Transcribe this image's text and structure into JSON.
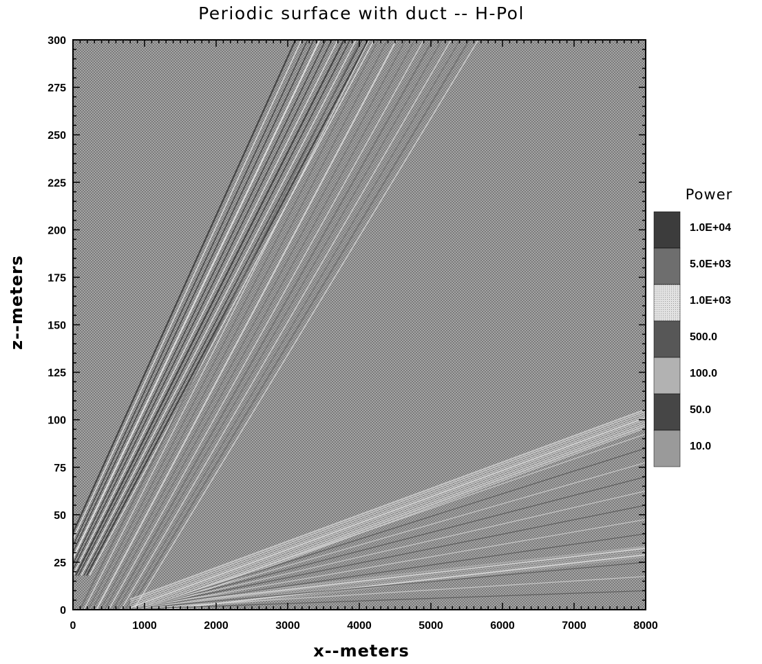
{
  "chart_data": {
    "type": "heatmap",
    "title": "Periodic surface with duct -- H-Pol",
    "xlabel": "x--meters",
    "ylabel": "z--meters",
    "xlim": [
      0,
      8000
    ],
    "ylim": [
      0,
      300
    ],
    "x_ticks": [
      "0",
      "1000",
      "2000",
      "3000",
      "4000",
      "5000",
      "6000",
      "7000",
      "8000"
    ],
    "x_tick_values": [
      0,
      1000,
      2000,
      3000,
      4000,
      5000,
      6000,
      7000,
      8000
    ],
    "y_ticks": [
      "0",
      "25",
      "50",
      "75",
      "100",
      "125",
      "150",
      "175",
      "200",
      "225",
      "250",
      "275",
      "300"
    ],
    "y_tick_values": [
      0,
      25,
      50,
      75,
      100,
      125,
      150,
      175,
      200,
      225,
      250,
      275,
      300
    ],
    "colorbar": {
      "title": "Power",
      "levels": [
        {
          "label": "1.0E+04",
          "value": 10000,
          "color": "#3c3c3c"
        },
        {
          "label": "5.0E+03",
          "value": 5000,
          "color": "#6e6e6e"
        },
        {
          "label": "1.0E+03",
          "value": 1000,
          "color": "#d8d8d8"
        },
        {
          "label": "500.0",
          "value": 500,
          "color": "#575757"
        },
        {
          "label": "100.0",
          "value": 100,
          "color": "#b2b2b2"
        },
        {
          "label": "50.0",
          "value": 50,
          "color": "#464646"
        },
        {
          "label": "10.0",
          "value": 10,
          "color": "#9a9a9a"
        }
      ]
    },
    "features": [
      {
        "name": "direct-ray-band",
        "from": [
          0,
          18
        ],
        "to": [
          3700,
          300
        ],
        "level": 10000
      },
      {
        "name": "reflected-ray-band",
        "from": [
          500,
          0
        ],
        "to": [
          4900,
          300
        ],
        "level": 5000
      },
      {
        "name": "duct-trapped-band",
        "from": [
          800,
          0
        ],
        "to": [
          8000,
          100
        ],
        "level": 1000
      },
      {
        "name": "surface-duct-layer",
        "from": [
          1000,
          0
        ],
        "to": [
          8000,
          30
        ],
        "level": 100
      }
    ]
  }
}
